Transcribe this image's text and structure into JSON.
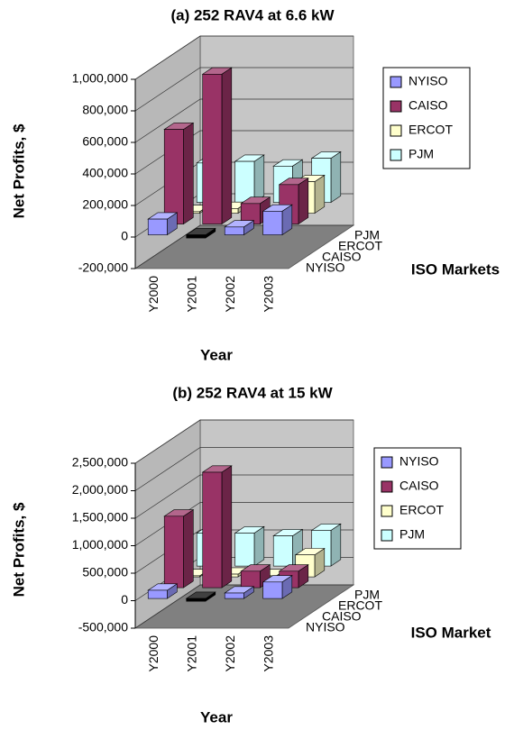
{
  "chart_data": [
    {
      "type": "bar3d",
      "title": "(a) 252 RAV4 at 6.6 kW",
      "y_label": "Net Profits, $",
      "x_label": "Year",
      "z_label": "ISO Markets",
      "categories": [
        "Y2000",
        "Y2001",
        "Y2002",
        "Y2003"
      ],
      "series": [
        {
          "name": "NYISO",
          "color": "#9999ff",
          "values": [
            100000,
            -20000,
            50000,
            150000
          ]
        },
        {
          "name": "CAISO",
          "color": "#993366",
          "values": [
            600000,
            950000,
            130000,
            250000
          ]
        },
        {
          "name": "ERCOT",
          "color": "#ffffcc",
          "values": [
            10000,
            30000,
            -10000,
            200000
          ]
        },
        {
          "name": "PJM",
          "color": "#ccffff",
          "values": [
            250000,
            260000,
            230000,
            280000
          ]
        }
      ],
      "negative_color": "#000000",
      "ylim": [
        -200000,
        1000000
      ],
      "yticks": [
        {
          "value": -200000,
          "label": "-200,000"
        },
        0,
        {
          "value": 200000,
          "label": "200,000"
        },
        {
          "value": 400000,
          "label": "400,000"
        },
        {
          "value": 600000,
          "label": "600,000"
        },
        {
          "value": 800000,
          "label": "800,000"
        },
        {
          "value": 1000000,
          "label": "1,000,000"
        }
      ],
      "grid": true,
      "legend": "right"
    },
    {
      "type": "bar3d",
      "title": "(b) 252 RAV4 at 15 kW",
      "y_label": "Net Profits, $",
      "x_label": "Year",
      "z_label": "ISO Market",
      "categories": [
        "Y2000",
        "Y2001",
        "Y2002",
        "Y2003"
      ],
      "series": [
        {
          "name": "NYISO",
          "color": "#9999ff",
          "values": [
            150000,
            -50000,
            100000,
            300000
          ]
        },
        {
          "name": "CAISO",
          "color": "#993366",
          "values": [
            1300000,
            2100000,
            300000,
            300000
          ]
        },
        {
          "name": "ERCOT",
          "color": "#ffffcc",
          "values": [
            20000,
            50000,
            20000,
            400000
          ]
        },
        {
          "name": "PJM",
          "color": "#ccffff",
          "values": [
            600000,
            600000,
            550000,
            650000
          ]
        }
      ],
      "negative_color": "#000000",
      "ylim": [
        -500000,
        2500000
      ],
      "yticks": [
        {
          "value": -500000,
          "label": "-500,000"
        },
        0,
        {
          "value": 500000,
          "label": "500,000"
        },
        {
          "value": 1000000,
          "label": "1,000,000"
        },
        {
          "value": 1500000,
          "label": "1,500,000"
        },
        {
          "value": 2000000,
          "label": "2,000,000"
        },
        {
          "value": 2500000,
          "label": "2,500,000"
        }
      ],
      "grid": true,
      "legend": "right"
    }
  ]
}
